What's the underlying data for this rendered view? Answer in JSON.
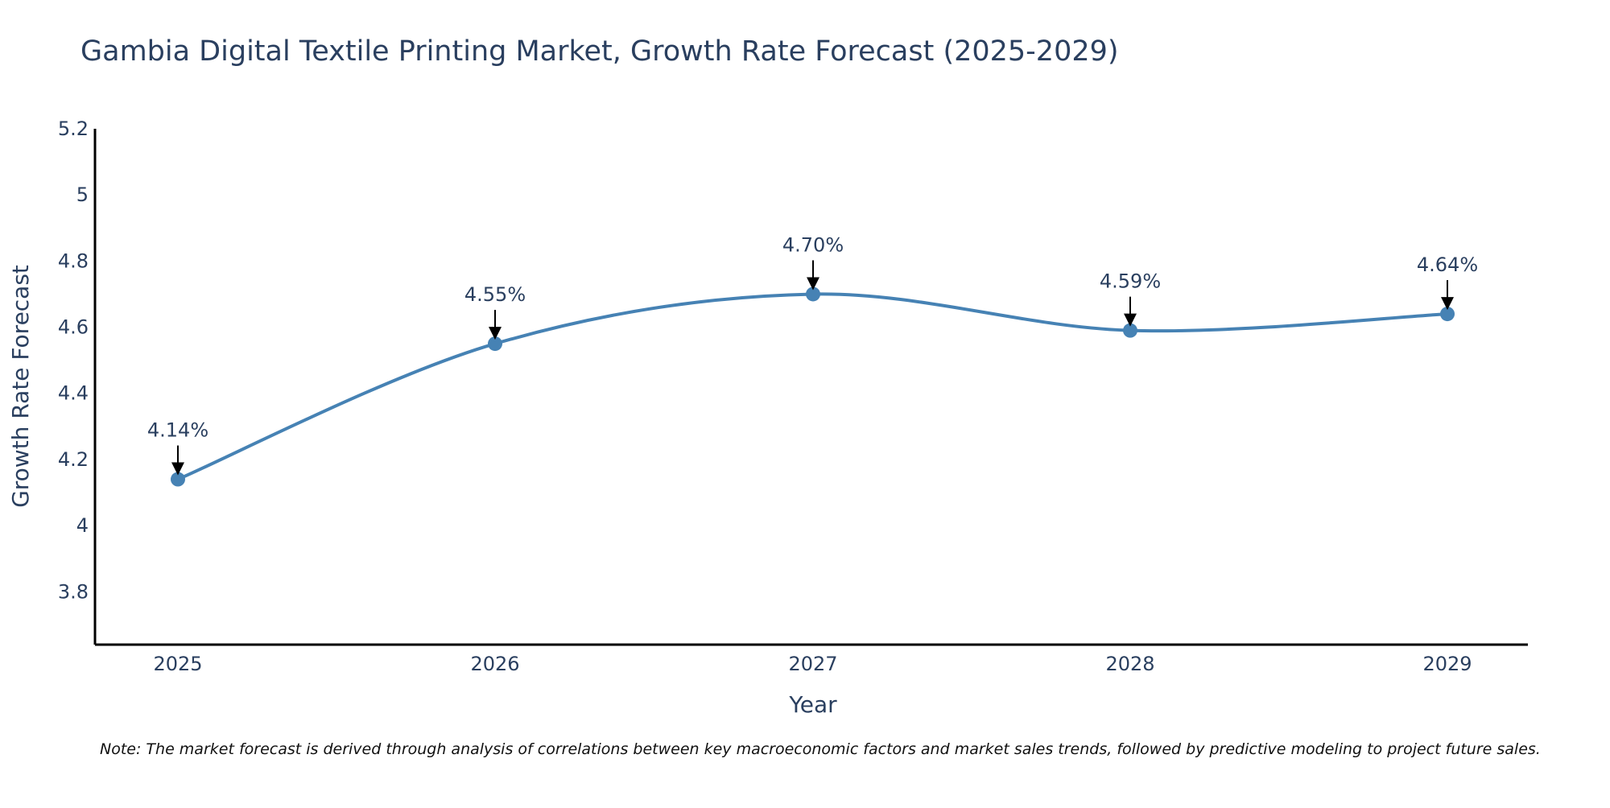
{
  "chart_data": {
    "type": "line",
    "title": "Gambia Digital Textile Printing Market, Growth Rate Forecast (2025-2029)",
    "xlabel": "Year",
    "ylabel": "Growth Rate Forecast",
    "x": [
      "2025",
      "2026",
      "2027",
      "2028",
      "2029"
    ],
    "series": [
      {
        "name": "Growth Rate Forecast",
        "values": [
          4.14,
          4.55,
          4.7,
          4.59,
          4.64
        ],
        "data_labels": [
          "4.14%",
          "4.55%",
          "4.70%",
          "4.59%",
          "4.64%"
        ],
        "color": "#4682b4"
      }
    ],
    "ylim": [
      3.64,
      5.2
    ],
    "yticks": [
      3.8,
      4,
      4.2,
      4.4,
      4.6,
      4.8,
      5,
      5.2
    ],
    "ytick_labels": [
      "3.8",
      "4",
      "4.2",
      "4.4",
      "4.6",
      "4.8",
      "5",
      "5.2"
    ],
    "grid": false,
    "line_shape": "spline",
    "note": "Note: The market forecast is derived through analysis of correlations between key macroeconomic factors and market sales trends, followed by predictive modeling to project future sales."
  },
  "colors": {
    "line": "#4682b4",
    "text": "#2a3f5f",
    "axis": "#000000",
    "arrow": "#000000"
  }
}
